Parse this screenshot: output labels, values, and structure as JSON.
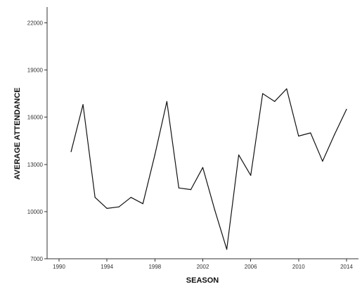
{
  "chart_data": {
    "type": "line",
    "title": "",
    "xlabel": "SEASON",
    "ylabel": "AVERAGE ATTENDANCE",
    "xlim": [
      1989,
      2015
    ],
    "ylim": [
      7000,
      23000
    ],
    "x_ticks": [
      1990,
      1994,
      1998,
      2002,
      2006,
      2010,
      2014
    ],
    "y_ticks": [
      7000,
      10000,
      13000,
      16000,
      19000,
      22000
    ],
    "grid": false,
    "series": [
      {
        "color": "#111111",
        "x": [
          1991,
          1992,
          1993,
          1994,
          1995,
          1996,
          1997,
          1998,
          1999,
          2000,
          2001,
          2002,
          2003,
          2004,
          2005,
          2006,
          2007,
          2008,
          2009,
          2010,
          2011,
          2012,
          2013,
          2014
        ],
        "y": [
          13800,
          16800,
          10900,
          10200,
          10300,
          10900,
          10500,
          13600,
          17000,
          11500,
          11400,
          12800,
          10100,
          7600,
          13600,
          12300,
          17500,
          17000,
          17800,
          14800,
          15000,
          13200,
          14900,
          16500
        ]
      }
    ]
  }
}
